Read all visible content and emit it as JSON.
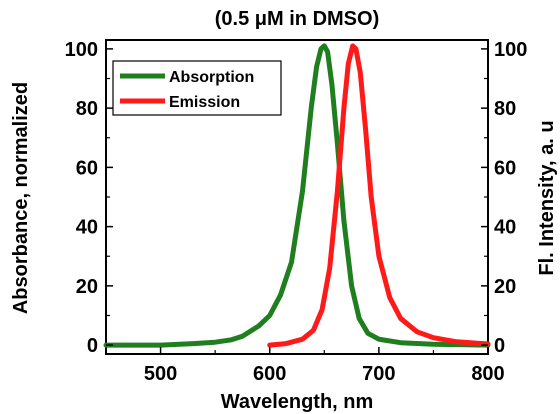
{
  "chart_data": {
    "type": "line",
    "title": "(0.5 μM in DMSO)",
    "xlabel": "Wavelength, nm",
    "ylabel_left": "Absorbance, normalized",
    "ylabel_right": "Fl. Intensity, a. u",
    "xlim": [
      450,
      800
    ],
    "ylim": [
      -3,
      103
    ],
    "x_ticks": [
      500,
      600,
      700,
      800
    ],
    "x_tick_labels": [
      "500",
      "600",
      "700",
      "800"
    ],
    "y_ticks": [
      0,
      20,
      40,
      60,
      80,
      100
    ],
    "y_tick_labels": [
      "0",
      "20",
      "40",
      "60",
      "80",
      "100"
    ],
    "grid": false,
    "legend_position": "top-left",
    "series": [
      {
        "name": "Absorption",
        "color": "#1f7f1f",
        "x": [
          450,
          500,
          530,
          550,
          565,
          575,
          590,
          600,
          610,
          620,
          630,
          638,
          643,
          647,
          650,
          653,
          657,
          662,
          668,
          675,
          682,
          690,
          700,
          720,
          750,
          800
        ],
        "y": [
          0,
          0,
          0.5,
          1,
          1.8,
          3,
          6.5,
          10,
          17,
          28,
          52,
          80,
          94,
          100,
          101,
          99,
          88,
          68,
          42,
          20,
          9,
          4,
          2,
          0.8,
          0.3,
          0
        ]
      },
      {
        "name": "Emission",
        "color": "#ff1a1a",
        "x": [
          600,
          615,
          630,
          640,
          648,
          655,
          662,
          668,
          672,
          676,
          679,
          683,
          688,
          693,
          700,
          710,
          720,
          735,
          750,
          770,
          790,
          800
        ],
        "y": [
          0,
          0.5,
          2,
          5,
          12,
          26,
          52,
          80,
          95,
          101,
          100,
          92,
          72,
          50,
          30,
          16,
          9,
          4.5,
          2.5,
          1.2,
          0.6,
          0.4
        ]
      }
    ]
  }
}
